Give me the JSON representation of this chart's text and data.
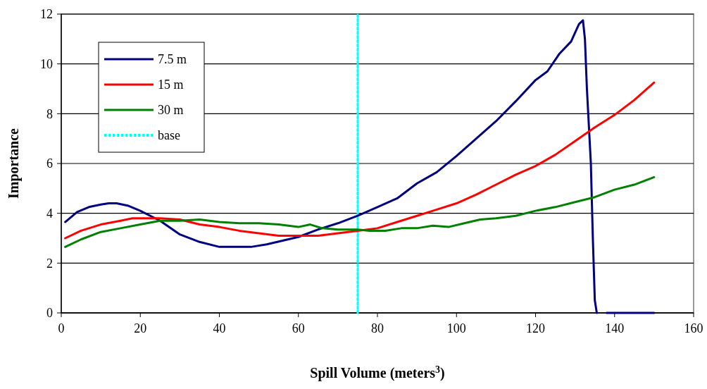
{
  "chart_data": {
    "type": "line",
    "xlabel": "Spill Volume (meters$^{3}$)",
    "ylabel": "Importance",
    "xlim": [
      0,
      160
    ],
    "xticks": [
      0,
      20,
      40,
      60,
      80,
      100,
      120,
      140,
      160
    ],
    "ylim": [
      0,
      12
    ],
    "yticks": [
      0,
      2,
      4,
      6,
      8,
      10,
      12
    ],
    "grid": "y",
    "legend": "top left",
    "marker": "none",
    "line_style": "solid",
    "series": [
      {
        "name": "7.5 m",
        "color": "#000080",
        "x": [
          1,
          4,
          7,
          10,
          12,
          14,
          17,
          20,
          25,
          30,
          35,
          40,
          45,
          48,
          52,
          56,
          60,
          65,
          70,
          75,
          80,
          85,
          90,
          95,
          100,
          105,
          110,
          115,
          120,
          123,
          126,
          129,
          131,
          132,
          132.5,
          133,
          134,
          134.5,
          135,
          135.5,
          136.5,
          138,
          150
        ],
        "values": [
          3.65,
          4.05,
          4.25,
          4.35,
          4.4,
          4.4,
          4.3,
          4.1,
          3.7,
          3.15,
          2.85,
          2.65,
          2.65,
          2.65,
          2.75,
          2.9,
          3.05,
          3.35,
          3.6,
          3.9,
          4.25,
          4.6,
          5.2,
          5.65,
          6.3,
          7.0,
          7.7,
          8.5,
          9.35,
          9.7,
          10.4,
          10.9,
          11.6,
          11.75,
          11.0,
          9.0,
          6.0,
          3.0,
          0.5,
          0,
          null,
          0,
          0
        ]
      },
      {
        "name": "15 m",
        "color": "#ff0000",
        "x": [
          1,
          5,
          10,
          15,
          18,
          25,
          30,
          35,
          40,
          45,
          50,
          55,
          60,
          65,
          70,
          75,
          80,
          85,
          90,
          95,
          100,
          105,
          110,
          115,
          120,
          125,
          130,
          135,
          140,
          145,
          150
        ],
        "values": [
          3.0,
          3.3,
          3.55,
          3.7,
          3.8,
          3.8,
          3.75,
          3.55,
          3.45,
          3.3,
          3.2,
          3.1,
          3.1,
          3.1,
          3.2,
          3.3,
          3.4,
          3.65,
          3.9,
          4.15,
          4.4,
          4.75,
          5.15,
          5.55,
          5.9,
          6.35,
          6.9,
          7.45,
          7.95,
          8.55,
          9.25
        ]
      },
      {
        "name": "30 m",
        "color": "#008000",
        "x": [
          1,
          5,
          10,
          15,
          20,
          25,
          30,
          35,
          40,
          45,
          50,
          55,
          60,
          63,
          66,
          70,
          75,
          78,
          82,
          86,
          90,
          94,
          98,
          102,
          106,
          110,
          115,
          120,
          125,
          130,
          135,
          140,
          145,
          150
        ],
        "values": [
          2.65,
          2.95,
          3.25,
          3.4,
          3.55,
          3.7,
          3.7,
          3.75,
          3.65,
          3.6,
          3.6,
          3.55,
          3.45,
          3.55,
          3.4,
          3.35,
          3.35,
          3.3,
          3.3,
          3.4,
          3.4,
          3.5,
          3.45,
          3.6,
          3.75,
          3.8,
          3.9,
          4.1,
          4.25,
          4.45,
          4.65,
          4.95,
          5.15,
          5.45
        ]
      },
      {
        "name": "base",
        "color": "#00ffff",
        "line_style": "dotted",
        "x": [
          75,
          75
        ],
        "values": [
          0,
          12
        ]
      }
    ]
  }
}
